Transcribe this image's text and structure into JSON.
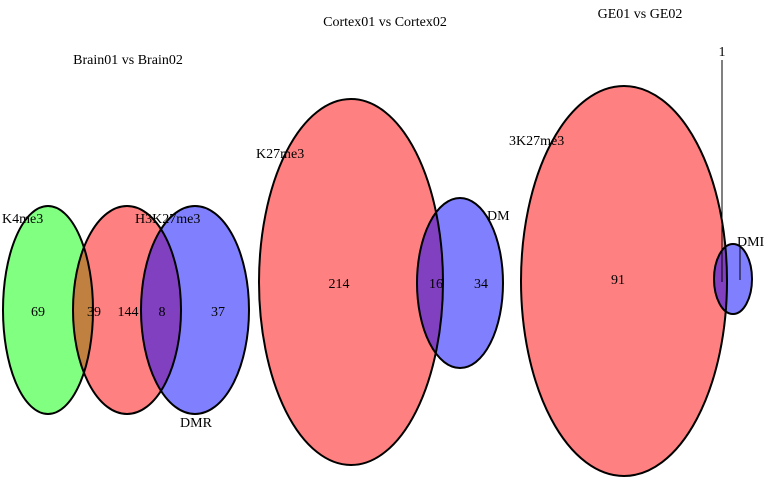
{
  "colors": {
    "background": "#ffffff",
    "green_set": "#80ff80",
    "red_set": "#ff8080",
    "blue_set": "#8080ff",
    "green_red_overlap": "#c08040",
    "red_blue_overlap": "#8040c0",
    "outline": "#000000"
  },
  "panels": [
    {
      "title": "Brain01 vs Brain02",
      "set_labels": [
        "K4me3",
        "H3K27me3",
        "DMR"
      ],
      "region_counts": [
        "69",
        "39",
        "144",
        "8",
        "37"
      ]
    },
    {
      "title": "Cortex01 vs Cortex02",
      "set_labels": [
        "K27me3",
        "DM"
      ],
      "region_counts": [
        "214",
        "16",
        "34"
      ]
    },
    {
      "title": "GE01 vs GE02",
      "set_labels": [
        "3K27me3",
        "DMI"
      ],
      "region_counts": [
        "91",
        "1"
      ]
    }
  ]
}
